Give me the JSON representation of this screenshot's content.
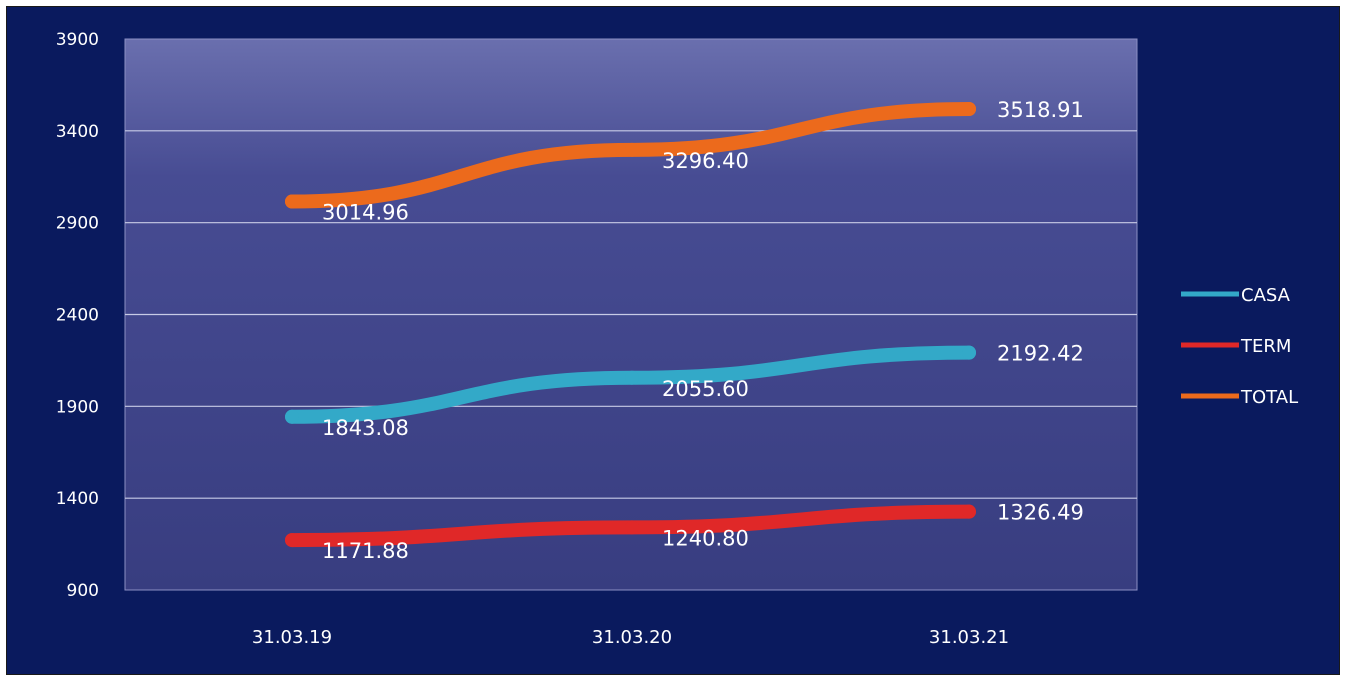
{
  "chart_data": {
    "type": "line",
    "categories": [
      "31.03.19",
      "31.03.20",
      "31.03.21"
    ],
    "series": [
      {
        "name": "CASA",
        "values": [
          1843.08,
          2055.6,
          2192.42
        ],
        "labels": [
          "1843.08",
          "2055.60",
          "2192.42"
        ],
        "color": "#33a9c8"
      },
      {
        "name": "TERM",
        "values": [
          1171.88,
          1240.8,
          1326.49
        ],
        "labels": [
          "1171.88",
          "1240.80",
          "1326.49"
        ],
        "color": "#e02828"
      },
      {
        "name": "TOTAL",
        "values": [
          3014.96,
          3296.4,
          3518.91
        ],
        "labels": [
          "3014.96",
          "3296.40",
          "3518.91"
        ],
        "color": "#ec6a1c"
      }
    ],
    "ylim": [
      900,
      3900
    ],
    "yticks": [
      "3900",
      "3400",
      "2900",
      "2400",
      "1900",
      "1400",
      "900"
    ],
    "grid": true,
    "legend_position": "right",
    "colors": {
      "background": "#0a1a5e",
      "plot_area": "#3f4489",
      "gridline": "#c8cbe6"
    }
  }
}
